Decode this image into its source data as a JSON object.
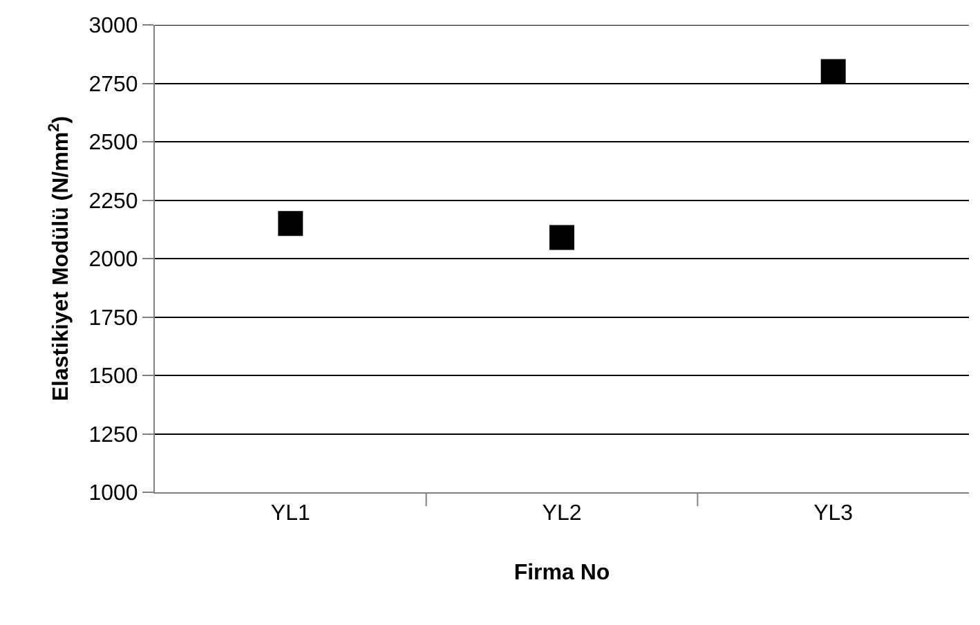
{
  "chart_data": {
    "type": "scatter",
    "xlabel": "Firma No",
    "ylabel": "Elastikiyet Modülü (N/mm$^{2}$)",
    "categories": [
      "YL1",
      "YL2",
      "YL3"
    ],
    "series": [
      {
        "color": "#000000",
        "values": [
          2150,
          2090,
          2800
        ]
      }
    ],
    "ylim": [
      1000,
      3000
    ],
    "yticks": [
      1000,
      1250,
      1500,
      1750,
      2000,
      2250,
      2500,
      2750,
      3000
    ],
    "grid": "y",
    "marker": "square"
  }
}
